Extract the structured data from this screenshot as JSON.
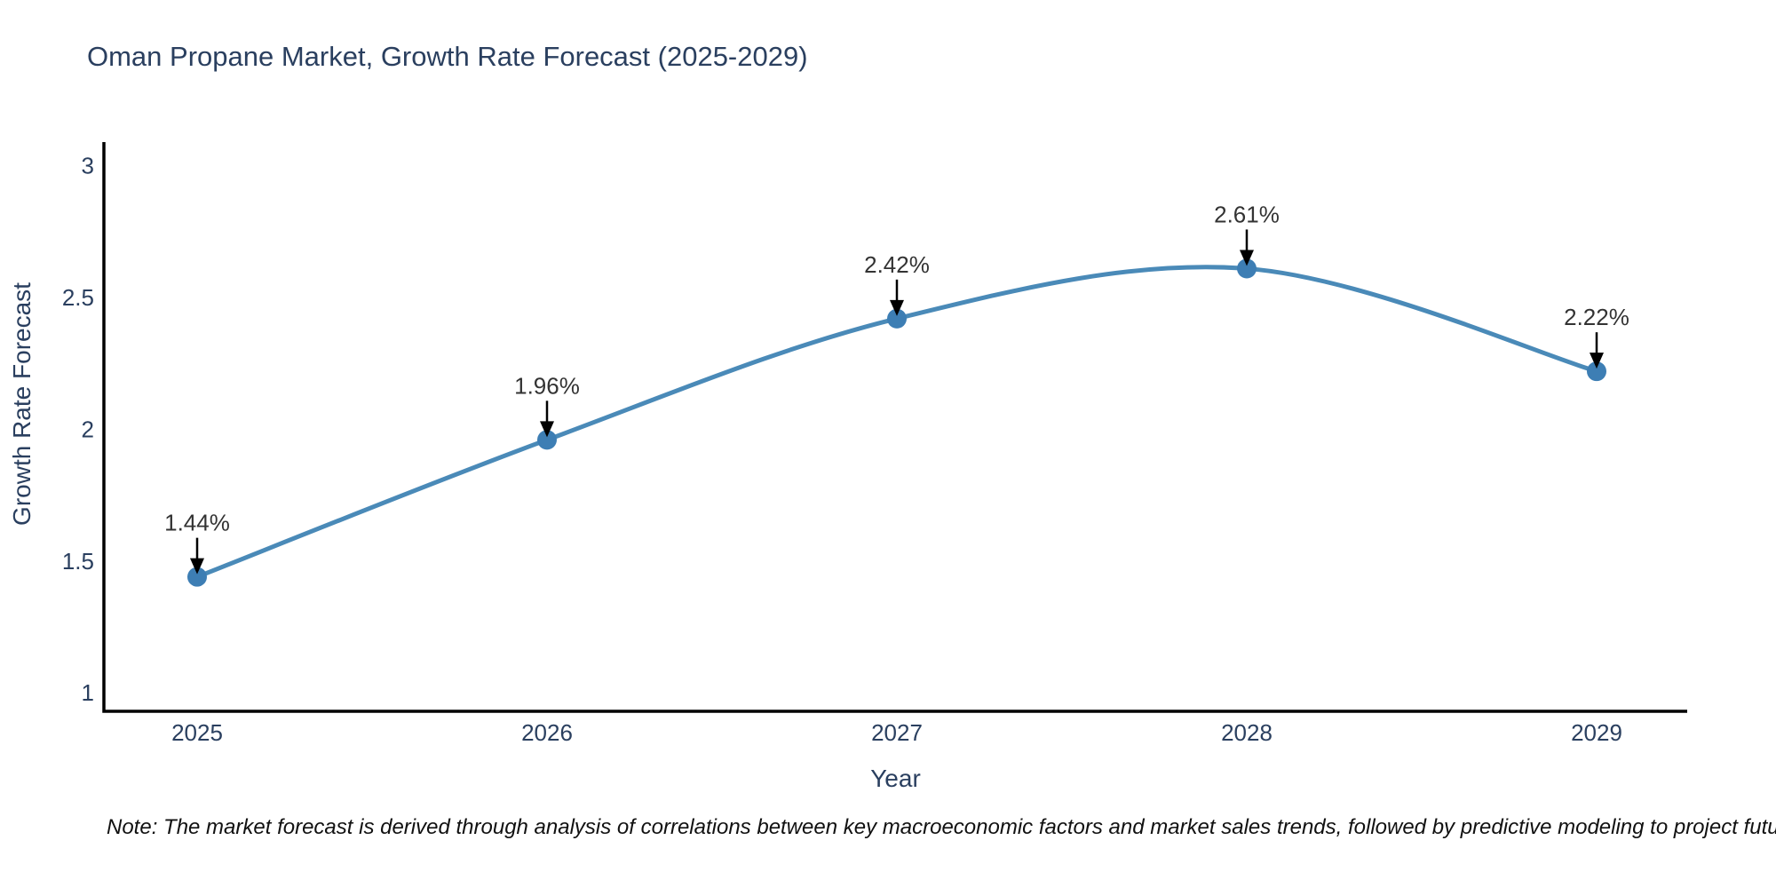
{
  "header": {
    "title": "Oman Propane Market, Growth Rate Forecast (2025-2029)"
  },
  "footnote": {
    "text": "Note: The market forecast is derived through analysis of correlations between key macroeconomic factors and market sales trends, followed by predictive modeling to project future sales"
  },
  "chart_data": {
    "type": "line",
    "title": "Oman Propane Market, Growth Rate Forecast (2025-2029)",
    "categories": [
      "2025",
      "2026",
      "2027",
      "2028",
      "2029"
    ],
    "series": [
      {
        "name": "Growth Rate Forecast",
        "values": [
          1.44,
          1.96,
          2.42,
          2.61,
          2.22
        ],
        "point_labels": [
          "1.44%",
          "1.96%",
          "2.42%",
          "2.61%",
          "2.22%"
        ]
      }
    ],
    "xlabel": "Year",
    "ylabel": "Growth Rate Forecast",
    "yticks": [
      1,
      1.5,
      2,
      2.5,
      3
    ],
    "ylim": [
      0.93,
      3.09
    ],
    "line_shape": "spline",
    "markers": true,
    "grid": false,
    "legend": "none",
    "annotations": "value labels above points with downward arrows",
    "colors": {
      "line": "#4a8ab8",
      "marker": "#3d7eb4",
      "axis": "#000000",
      "tick_text": "#2a3f5f",
      "axis_title_text": "#2a3f5f",
      "annotation_text": "#333333",
      "annotation_arrow": "#000000",
      "background": "#ffffff"
    }
  }
}
